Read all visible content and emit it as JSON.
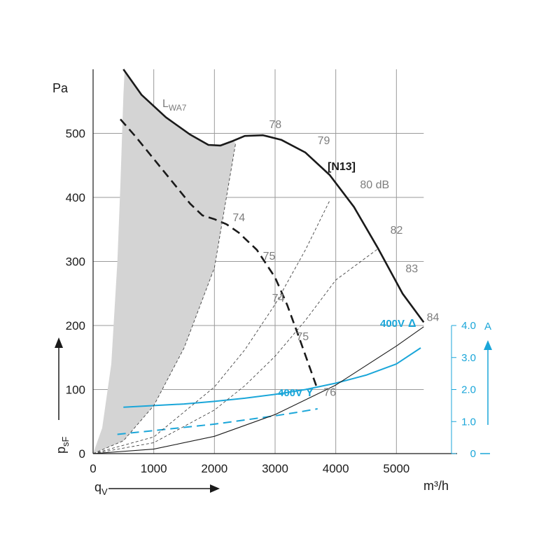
{
  "chart_data": {
    "type": "line",
    "xlabel": "q",
    "xlabel_sub": "V",
    "xunit": "m³/h",
    "ylabel": "p",
    "ylabel_sub": "sF",
    "yunit": "Pa",
    "y2unit": "A",
    "xlim": [
      0,
      6000
    ],
    "ylim": [
      0,
      600
    ],
    "y2lim": [
      0,
      4.0
    ],
    "x_ticks": [
      0,
      1000,
      2000,
      3000,
      4000,
      5000
    ],
    "y_ticks": [
      0,
      100,
      200,
      300,
      400,
      500
    ],
    "y2_ticks": [
      {
        "value": 0,
        "label": "0"
      },
      {
        "value": 1.0,
        "label": "1.0"
      },
      {
        "value": 2.0,
        "label": "2.0"
      },
      {
        "value": 3.0,
        "label": "3.0"
      },
      {
        "value": 4.0,
        "label": "4.0"
      }
    ],
    "model_label": "[N13]",
    "sound_label_main": "L",
    "sound_label_sub": "WA7",
    "series": [
      {
        "name": "400V Δ",
        "kind": "pressure",
        "style": "solid",
        "points": [
          [
            500,
            600
          ],
          [
            800,
            560
          ],
          [
            1200,
            525
          ],
          [
            1600,
            498
          ],
          [
            1900,
            482
          ],
          [
            2100,
            481
          ],
          [
            2300,
            488
          ],
          [
            2500,
            496
          ],
          [
            2800,
            497
          ],
          [
            3100,
            490
          ],
          [
            3500,
            470
          ],
          [
            3900,
            435
          ],
          [
            4300,
            385
          ],
          [
            4700,
            320
          ],
          [
            5100,
            250
          ],
          [
            5450,
            205
          ]
        ]
      },
      {
        "name": "400V Y",
        "kind": "pressure",
        "style": "dashed",
        "points": [
          [
            450,
            522
          ],
          [
            700,
            495
          ],
          [
            1000,
            460
          ],
          [
            1300,
            425
          ],
          [
            1600,
            390
          ],
          [
            1800,
            372
          ],
          [
            2000,
            366
          ],
          [
            2200,
            358
          ],
          [
            2400,
            345
          ],
          [
            2700,
            318
          ],
          [
            3000,
            275
          ],
          [
            3200,
            232
          ],
          [
            3400,
            180
          ],
          [
            3550,
            140
          ],
          [
            3700,
            100
          ]
        ]
      },
      {
        "name": "400V Δ current",
        "kind": "current",
        "style": "solid",
        "points": [
          [
            500,
            1.45
          ],
          [
            1000,
            1.5
          ],
          [
            1500,
            1.55
          ],
          [
            2000,
            1.63
          ],
          [
            2500,
            1.73
          ],
          [
            3000,
            1.85
          ],
          [
            3500,
            2.0
          ],
          [
            4000,
            2.2
          ],
          [
            4500,
            2.45
          ],
          [
            5000,
            2.8
          ],
          [
            5400,
            3.3
          ]
        ]
      },
      {
        "name": "400V Y current",
        "kind": "current",
        "style": "dashed",
        "points": [
          [
            400,
            0.6
          ],
          [
            1000,
            0.72
          ],
          [
            1500,
            0.82
          ],
          [
            2000,
            0.92
          ],
          [
            2500,
            1.05
          ],
          [
            3000,
            1.18
          ],
          [
            3400,
            1.3
          ],
          [
            3700,
            1.4
          ]
        ]
      },
      {
        "kind": "system",
        "style": "solid",
        "points": [
          [
            0,
            0
          ],
          [
            1000,
            7
          ],
          [
            2000,
            27
          ],
          [
            3000,
            61
          ],
          [
            4000,
            107
          ],
          [
            5000,
            168
          ],
          [
            5450,
            198
          ]
        ]
      },
      {
        "kind": "system",
        "style": "dashed",
        "points": [
          [
            0,
            0
          ],
          [
            1000,
            17
          ],
          [
            2000,
            68
          ],
          [
            2500,
            106
          ],
          [
            3000,
            152
          ],
          [
            3500,
            208
          ],
          [
            4000,
            271
          ],
          [
            4700,
            320
          ]
        ]
      },
      {
        "kind": "system",
        "style": "dashed",
        "points": [
          [
            0,
            0
          ],
          [
            1000,
            26
          ],
          [
            2000,
            104
          ],
          [
            2500,
            162
          ],
          [
            3000,
            233
          ],
          [
            3500,
            318
          ],
          [
            3900,
            395
          ]
        ]
      },
      {
        "kind": "system",
        "style": "dashed",
        "points": [
          [
            0,
            0
          ],
          [
            500,
            20
          ],
          [
            1000,
            75
          ],
          [
            1500,
            165
          ],
          [
            2000,
            290
          ],
          [
            2350,
            485
          ]
        ]
      }
    ],
    "shaded_region_lower_edge": [
      [
        0,
        0
      ],
      [
        150,
        40
      ],
      [
        300,
        140
      ],
      [
        400,
        300
      ],
      [
        450,
        420
      ],
      [
        500,
        560
      ],
      [
        520,
        600
      ]
    ],
    "shaded_region_upper_edge": [
      [
        500,
        600
      ],
      [
        800,
        560
      ],
      [
        1200,
        525
      ],
      [
        1600,
        498
      ],
      [
        1900,
        482
      ],
      [
        2100,
        481
      ],
      [
        2300,
        488
      ],
      [
        2350,
        485
      ],
      [
        2000,
        290
      ],
      [
        1500,
        165
      ],
      [
        1000,
        75
      ],
      [
        500,
        20
      ],
      [
        0,
        0
      ]
    ],
    "db_labels": [
      {
        "text": "78",
        "x": 2900,
        "y": 508
      },
      {
        "text": "79",
        "x": 3700,
        "y": 483
      },
      {
        "text": "80 dB",
        "x": 4400,
        "y": 414
      },
      {
        "text": "74",
        "x": 2300,
        "y": 363
      },
      {
        "text": "82",
        "x": 4900,
        "y": 343
      },
      {
        "text": "75",
        "x": 2800,
        "y": 303
      },
      {
        "text": "83",
        "x": 5150,
        "y": 283
      },
      {
        "text": "74",
        "x": 2950,
        "y": 237
      },
      {
        "text": "84",
        "x": 5500,
        "y": 207
      },
      {
        "text": "75",
        "x": 3350,
        "y": 177
      },
      {
        "text": "76",
        "x": 3800,
        "y": 90
      }
    ],
    "series_labels": [
      {
        "text": "400V",
        "symbol": "Δ",
        "for": "400V Δ current"
      },
      {
        "text": "400V",
        "symbol": "Y",
        "for": "400V Y current"
      }
    ],
    "grid": true
  }
}
